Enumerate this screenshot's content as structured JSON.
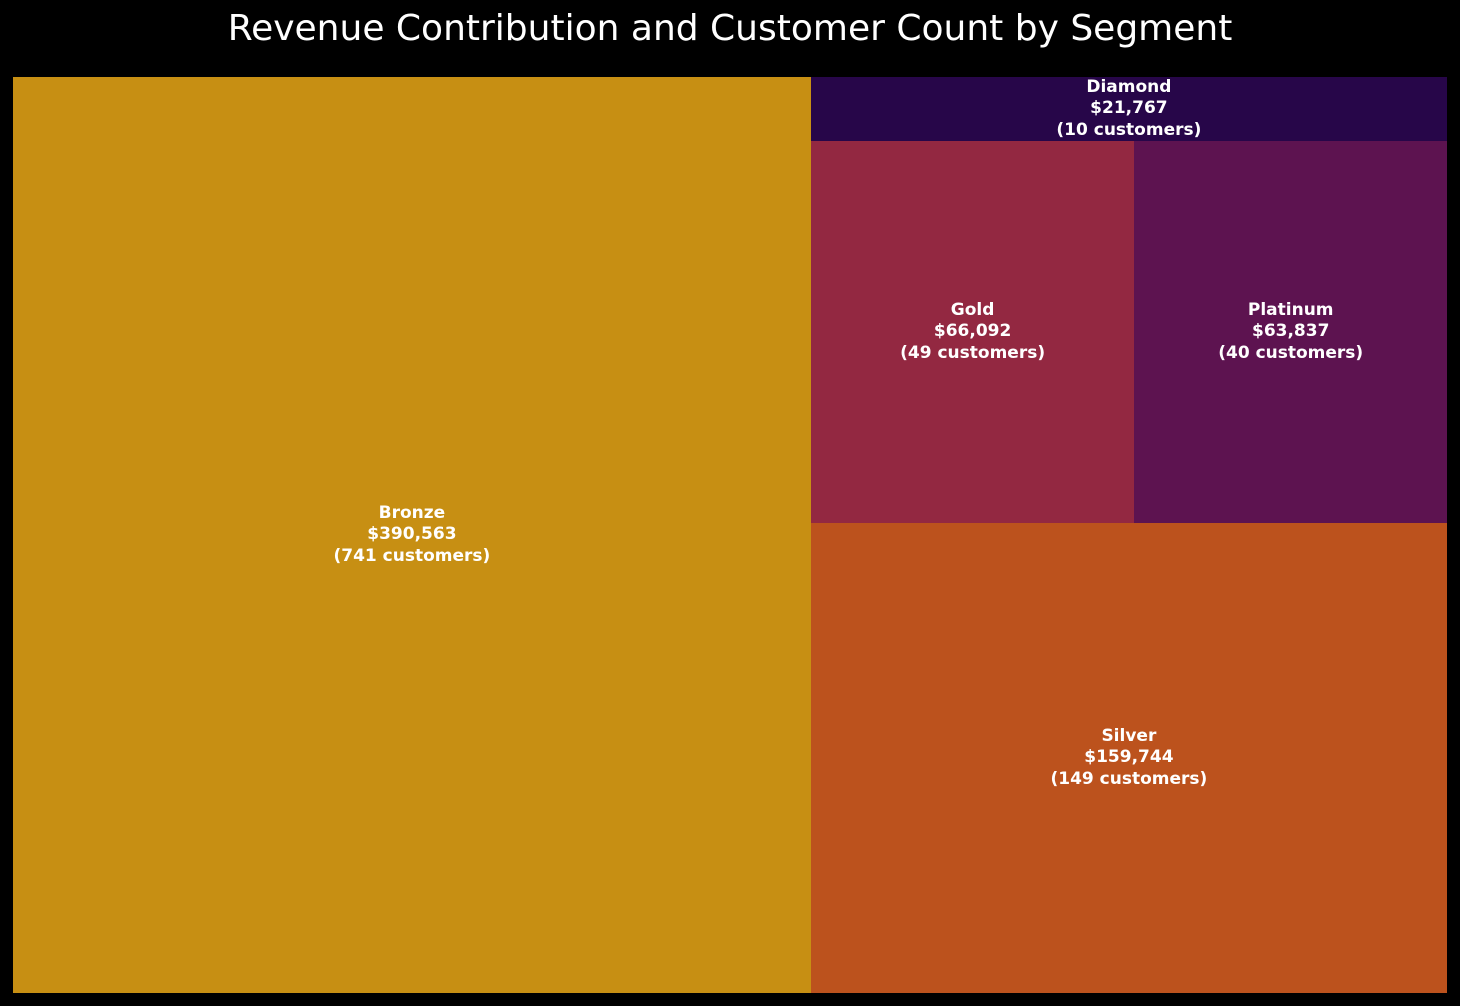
{
  "chart_data": {
    "type": "treemap",
    "title": "Revenue Contribution and Customer Count by Segment",
    "segments": [
      {
        "name": "Bronze",
        "revenue": 390563,
        "revenue_label": "$390,563",
        "customers_label": "(741 customers)",
        "color": "#c78f13"
      },
      {
        "name": "Silver",
        "revenue": 159744,
        "revenue_label": "$159,744",
        "customers_label": "(149 customers)",
        "color": "#bc521d"
      },
      {
        "name": "Gold",
        "revenue": 66092,
        "revenue_label": "$66,092",
        "customers_label": "(49 customers)",
        "color": "#932841"
      },
      {
        "name": "Platinum",
        "revenue": 63837,
        "revenue_label": "$63,837",
        "customers_label": "(40 customers)",
        "color": "#5d1350"
      },
      {
        "name": "Diamond",
        "revenue": 21767,
        "revenue_label": "$21,767",
        "customers_label": "(10 customers)",
        "color": "#270649"
      }
    ]
  }
}
